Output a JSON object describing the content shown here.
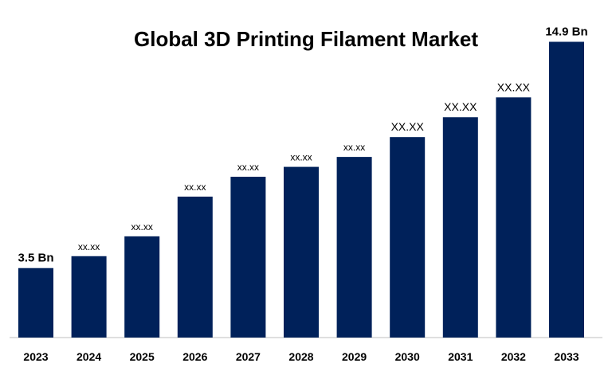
{
  "chart_data": {
    "type": "bar",
    "title": "Global 3D Printing Filament Market",
    "xlabel": "",
    "ylabel": "",
    "categories": [
      "2023",
      "2024",
      "2025",
      "2026",
      "2027",
      "2028",
      "2029",
      "2030",
      "2031",
      "2032",
      "2033"
    ],
    "values": [
      3.5,
      4.1,
      5.1,
      7.1,
      8.1,
      8.6,
      9.1,
      10.1,
      11.1,
      12.1,
      14.9
    ],
    "data_labels": [
      "3.5 Bn",
      "xx.xx",
      "xx.xx",
      "xx.xx",
      "xx.xx",
      "xx.xx",
      "xx.xx",
      "XX.XX",
      "XX.XX",
      "XX.XX",
      "14.9 Bn"
    ],
    "ylim": [
      0,
      15
    ],
    "grid": false,
    "legend": "none",
    "bar_color": "#00215a"
  }
}
